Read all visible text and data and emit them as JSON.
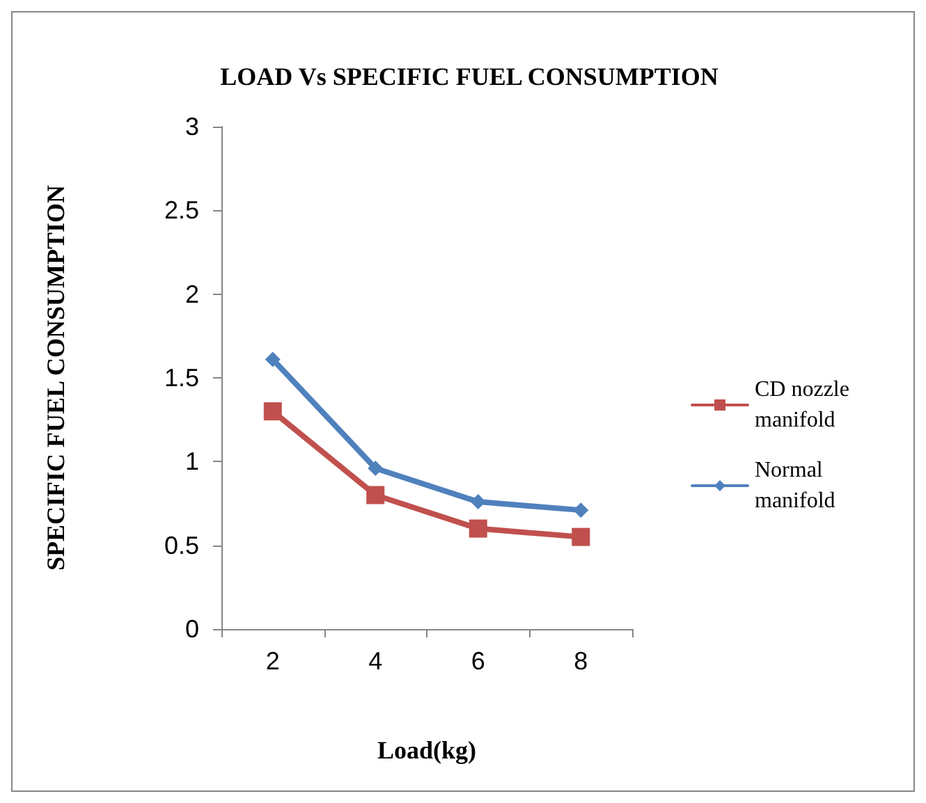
{
  "chart_data": {
    "type": "line",
    "title": "LOAD Vs SPECIFIC FUEL CONSUMPTION",
    "xlabel": "Load(kg)",
    "ylabel": "SPECIFIC FUEL CONSUMPTION",
    "categories": [
      "2",
      "4",
      "6",
      "8"
    ],
    "series": [
      {
        "name": "CD nozzle manifold",
        "color": "#c0504d",
        "marker": "square",
        "values": [
          1.3,
          0.8,
          0.6,
          0.55
        ]
      },
      {
        "name": "Normal manifold",
        "color": "#4f81bd",
        "marker": "diamond",
        "values": [
          1.61,
          0.96,
          0.76,
          0.71
        ]
      }
    ],
    "ylim": [
      0,
      3
    ],
    "yticks": [
      0,
      0.5,
      1,
      1.5,
      2,
      2.5,
      3
    ],
    "grid": false,
    "legend": "right"
  }
}
